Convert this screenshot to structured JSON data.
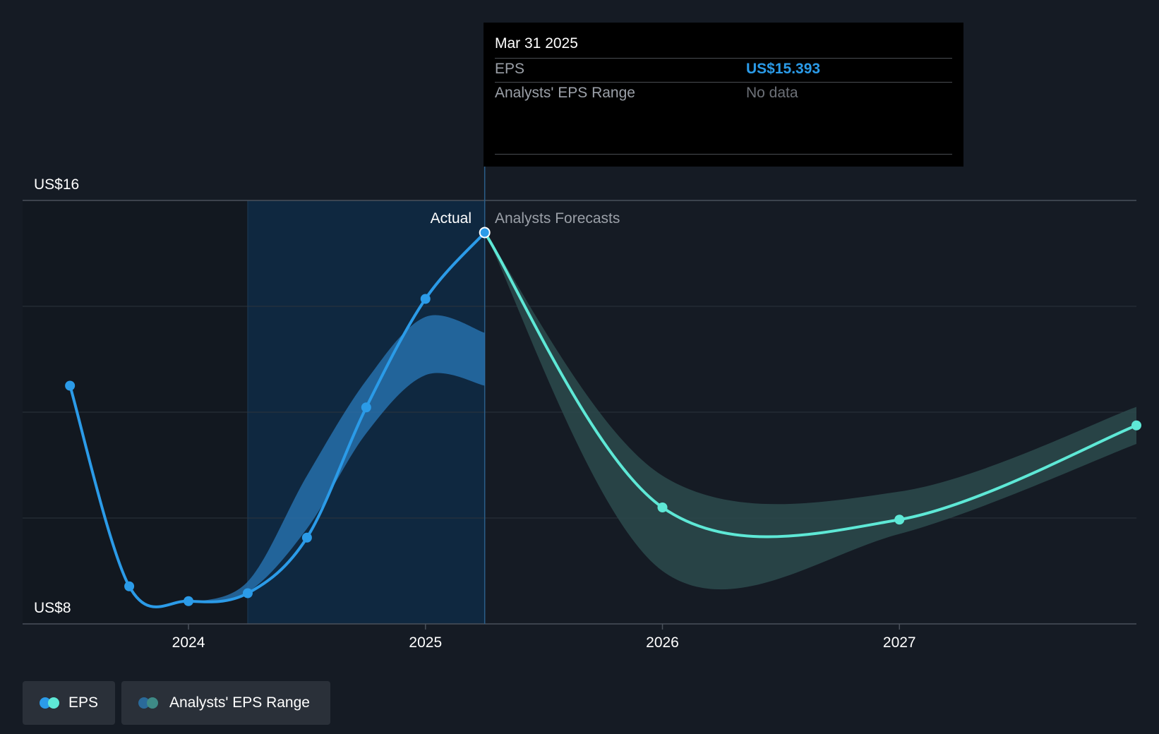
{
  "colors": {
    "background": "#151b24",
    "actual_line": "#2b9be8",
    "forecast_line": "#5ee8d6",
    "actual_range": "#2a78b8",
    "forecast_range": "#2c4a4c",
    "actual_shade": "#0f2840"
  },
  "tooltip": {
    "date": "Mar 31 2025",
    "rows": [
      {
        "label": "EPS",
        "value": "US$15.393",
        "value_color": "#2b9be8"
      },
      {
        "label": "Analysts' EPS Range",
        "value": "No data",
        "value_color": "#6d7178"
      }
    ]
  },
  "section_labels": {
    "actual": "Actual",
    "forecast": "Analysts Forecasts"
  },
  "legend": [
    {
      "label": "EPS",
      "icon": "eps-legend-icon",
      "colors": [
        "#2b9be8",
        "#5ee8d6"
      ]
    },
    {
      "label": "Analysts' EPS Range",
      "icon": "range-legend-icon",
      "colors": [
        "#2a6a9a",
        "#3e8a86"
      ]
    }
  ],
  "chart_data": {
    "type": "line",
    "xlabel": "",
    "ylabel": "",
    "y_tick_labels": [
      {
        "value": 16,
        "label": "US$16"
      },
      {
        "value": 8,
        "label": "US$8"
      }
    ],
    "x_tick_labels": [
      {
        "value": 2024.0,
        "label": "2024"
      },
      {
        "value": 2025.0,
        "label": "2025"
      },
      {
        "value": 2026.0,
        "label": "2026"
      },
      {
        "value": 2027.0,
        "label": "2027"
      }
    ],
    "xlim": [
      2023.3,
      2028.0
    ],
    "ylim": [
      8,
      16
    ],
    "grid": true,
    "gridlines_y": [
      16,
      14,
      12,
      10,
      8
    ],
    "divider_x": 2025.25,
    "actual_shade_start": 2024.25,
    "series": [
      {
        "name": "EPS",
        "segment": "actual",
        "x": [
          2023.5,
          2023.75,
          2024.0,
          2024.25,
          2024.5,
          2024.75,
          2025.0,
          2025.25
        ],
        "y": [
          12.5,
          8.71,
          8.43,
          8.58,
          9.63,
          12.09,
          14.14,
          15.393
        ]
      },
      {
        "name": "EPS",
        "segment": "forecast",
        "x": [
          2025.25,
          2026.0,
          2027.0,
          2028.0
        ],
        "y": [
          15.393,
          10.2,
          9.97,
          11.75
        ]
      }
    ],
    "ranges": [
      {
        "name": "Analysts' EPS Range",
        "segment": "actual",
        "x": [
          2024.0,
          2024.25,
          2024.5,
          2024.75,
          2025.0,
          2025.25
        ],
        "low": [
          8.4,
          8.6,
          9.8,
          11.6,
          12.7,
          12.5
        ],
        "high": [
          8.4,
          8.8,
          10.8,
          12.6,
          13.8,
          13.5
        ]
      },
      {
        "name": "Analysts' EPS Range",
        "segment": "forecast",
        "x": [
          2025.25,
          2026.0,
          2027.0,
          2028.0
        ],
        "low": [
          15.393,
          9.0,
          9.7,
          11.4
        ],
        "high": [
          15.393,
          10.8,
          10.5,
          12.1
        ]
      }
    ]
  }
}
